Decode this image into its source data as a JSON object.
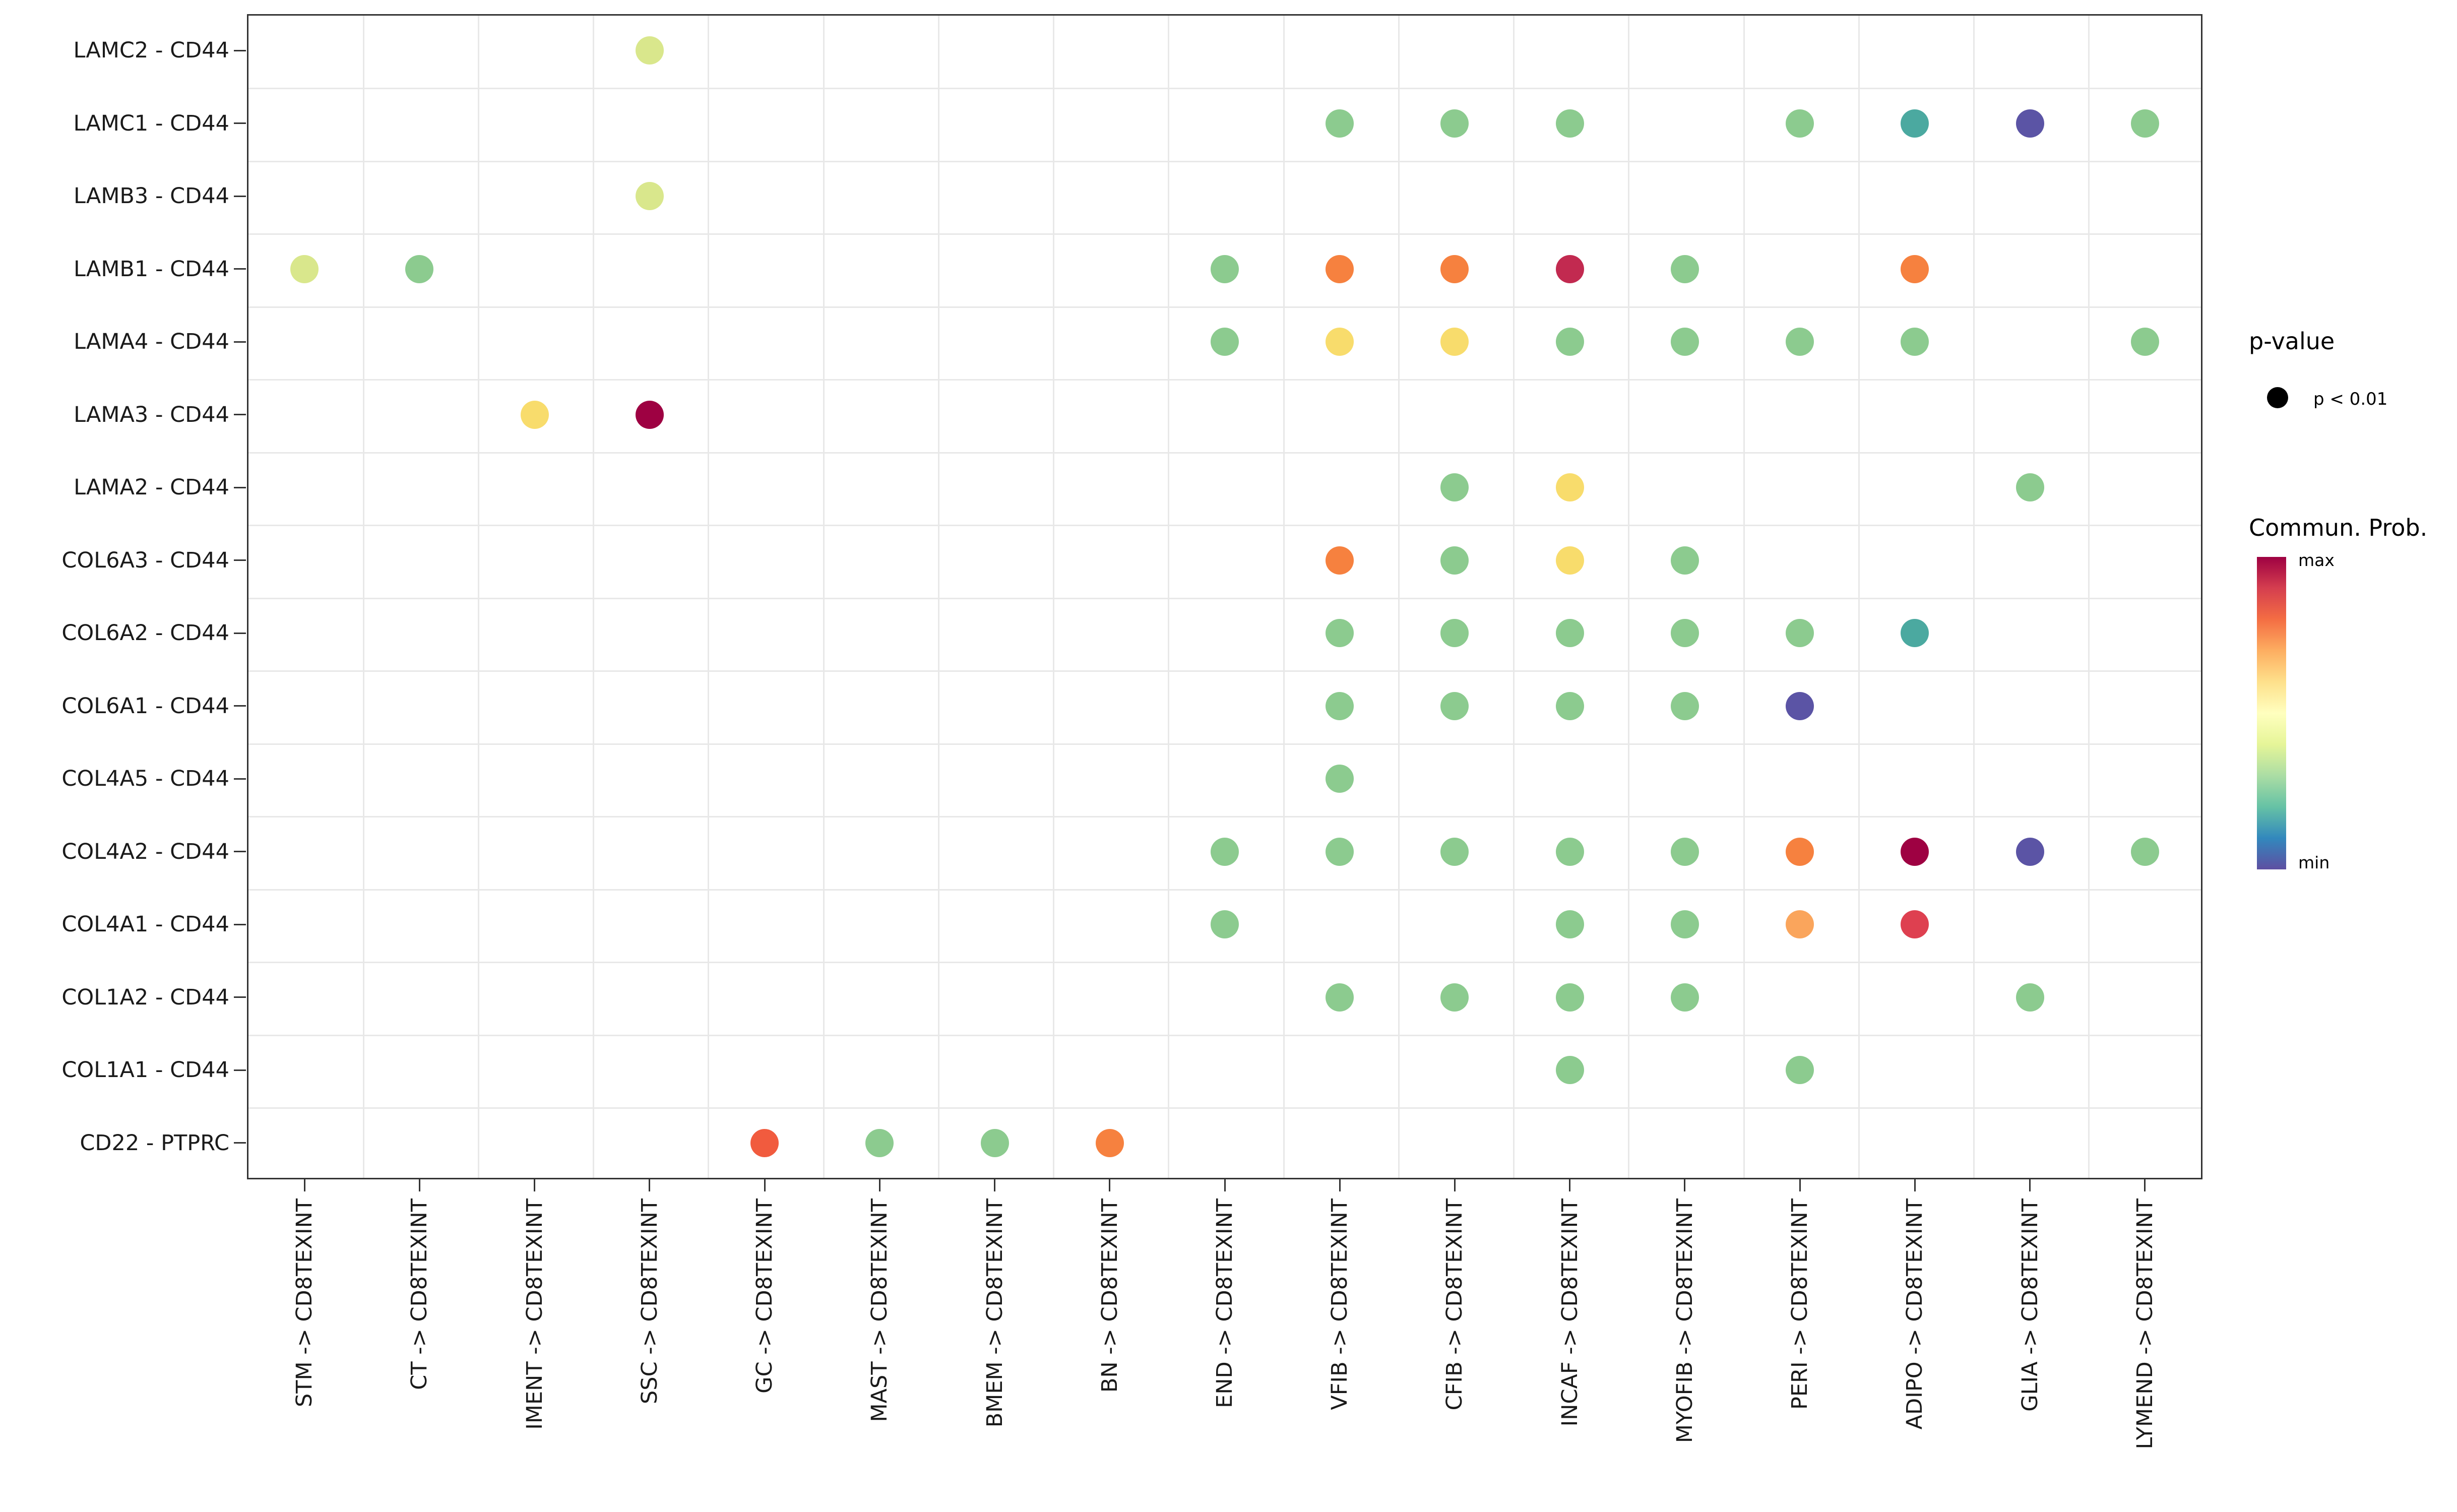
{
  "chart_data": {
    "type": "scatter",
    "subtype": "bubble-dotplot",
    "title": "",
    "xlabel": "",
    "ylabel": "",
    "grid": true,
    "legend_position": "right",
    "rows": [
      "LAMC2 - CD44",
      "LAMC1 - CD44",
      "LAMB3 - CD44",
      "LAMB1 - CD44",
      "LAMA4 - CD44",
      "LAMA3 - CD44",
      "LAMA2 - CD44",
      "COL6A3 - CD44",
      "COL6A2 - CD44",
      "COL6A1 - CD44",
      "COL4A5 - CD44",
      "COL4A2 - CD44",
      "COL4A1 - CD44",
      "COL1A2 - CD44",
      "COL1A1 - CD44",
      "CD22 - PTPRC"
    ],
    "columns": [
      "STM -> CD8TEXINT",
      "CT -> CD8TEXINT",
      "IMENT -> CD8TEXINT",
      "SSC -> CD8TEXINT",
      "GC -> CD8TEXINT",
      "MAST -> CD8TEXINT",
      "BMEM -> CD8TEXINT",
      "BN -> CD8TEXINT",
      "END -> CD8TEXINT",
      "VFIB -> CD8TEXINT",
      "CFIB -> CD8TEXINT",
      "INCAF -> CD8TEXINT",
      "MYOFIB -> CD8TEXINT",
      "PERI -> CD8TEXINT",
      "ADIPO -> CD8TEXINT",
      "GLIA -> CD8TEXINT",
      "LYMEND -> CD8TEXINT"
    ],
    "points": [
      [
        0,
        3,
        "yellowGreen"
      ],
      [
        1,
        9,
        "green"
      ],
      [
        1,
        10,
        "green"
      ],
      [
        1,
        11,
        "green"
      ],
      [
        1,
        13,
        "green"
      ],
      [
        1,
        14,
        "teal"
      ],
      [
        1,
        15,
        "purple"
      ],
      [
        1,
        16,
        "green"
      ],
      [
        2,
        3,
        "yellowGreen"
      ],
      [
        3,
        0,
        "yellowGreen"
      ],
      [
        3,
        1,
        "green"
      ],
      [
        3,
        8,
        "green"
      ],
      [
        3,
        9,
        "orange"
      ],
      [
        3,
        10,
        "orange"
      ],
      [
        3,
        11,
        "crimson"
      ],
      [
        3,
        12,
        "green"
      ],
      [
        3,
        14,
        "orange"
      ],
      [
        4,
        8,
        "green"
      ],
      [
        4,
        9,
        "yellow"
      ],
      [
        4,
        10,
        "yellow"
      ],
      [
        4,
        11,
        "green"
      ],
      [
        4,
        12,
        "green"
      ],
      [
        4,
        13,
        "green"
      ],
      [
        4,
        14,
        "green"
      ],
      [
        4,
        16,
        "green"
      ],
      [
        5,
        2,
        "yellow"
      ],
      [
        5,
        3,
        "darkRed"
      ],
      [
        6,
        10,
        "green"
      ],
      [
        6,
        11,
        "yellow"
      ],
      [
        6,
        15,
        "green"
      ],
      [
        7,
        9,
        "orange"
      ],
      [
        7,
        10,
        "green"
      ],
      [
        7,
        11,
        "yellow"
      ],
      [
        7,
        12,
        "green"
      ],
      [
        8,
        9,
        "green"
      ],
      [
        8,
        10,
        "green"
      ],
      [
        8,
        11,
        "green"
      ],
      [
        8,
        12,
        "green"
      ],
      [
        8,
        13,
        "green"
      ],
      [
        8,
        14,
        "teal"
      ],
      [
        9,
        9,
        "green"
      ],
      [
        9,
        10,
        "green"
      ],
      [
        9,
        11,
        "green"
      ],
      [
        9,
        12,
        "green"
      ],
      [
        9,
        13,
        "purple"
      ],
      [
        10,
        9,
        "green"
      ],
      [
        11,
        8,
        "green"
      ],
      [
        11,
        9,
        "green"
      ],
      [
        11,
        10,
        "green"
      ],
      [
        11,
        11,
        "green"
      ],
      [
        11,
        12,
        "green"
      ],
      [
        11,
        13,
        "orange"
      ],
      [
        11,
        14,
        "darkRed"
      ],
      [
        11,
        15,
        "purple"
      ],
      [
        11,
        16,
        "green"
      ],
      [
        12,
        8,
        "green"
      ],
      [
        12,
        11,
        "green"
      ],
      [
        12,
        12,
        "green"
      ],
      [
        12,
        13,
        "lightOrange"
      ],
      [
        12,
        14,
        "red"
      ],
      [
        13,
        9,
        "green"
      ],
      [
        13,
        10,
        "green"
      ],
      [
        13,
        11,
        "green"
      ],
      [
        13,
        12,
        "green"
      ],
      [
        13,
        15,
        "green"
      ],
      [
        14,
        11,
        "green"
      ],
      [
        14,
        13,
        "green"
      ],
      [
        15,
        4,
        "orangeRed"
      ],
      [
        15,
        5,
        "green"
      ],
      [
        15,
        6,
        "green"
      ],
      [
        15,
        7,
        "orange"
      ]
    ],
    "palette": {
      "darkRed": "#9E0142",
      "crimson": "#C22A50",
      "red": "#DE4050",
      "orangeRed": "#F15B3E",
      "orange": "#F6813F",
      "lightOrange": "#FAA55C",
      "yellow": "#F8DC6C",
      "yellowGreen": "#D9E78C",
      "green": "#8CCB8F",
      "teal": "#4BA9A0",
      "purple": "#5B54A5"
    },
    "legend": {
      "pvalue_title": "p-value",
      "pvalue_label": "p < 0.01",
      "pvalue_dot_color": "#000000",
      "colorbar_title": "Commun. Prob.",
      "max_label": "max",
      "min_label": "min",
      "colorbar_colors": [
        "#9E0142",
        "#D53E4F",
        "#F46D43",
        "#FDAE61",
        "#FEE08B",
        "#FFFFBF",
        "#E6F598",
        "#ABDDA4",
        "#66C2A5",
        "#3288BD",
        "#5E4FA2"
      ]
    },
    "style": {
      "grid_color": "#E8E8E8",
      "panel_border_color": "#333333",
      "axis_text_color": "#1A1A1A",
      "background": "#FFFFFF"
    }
  }
}
